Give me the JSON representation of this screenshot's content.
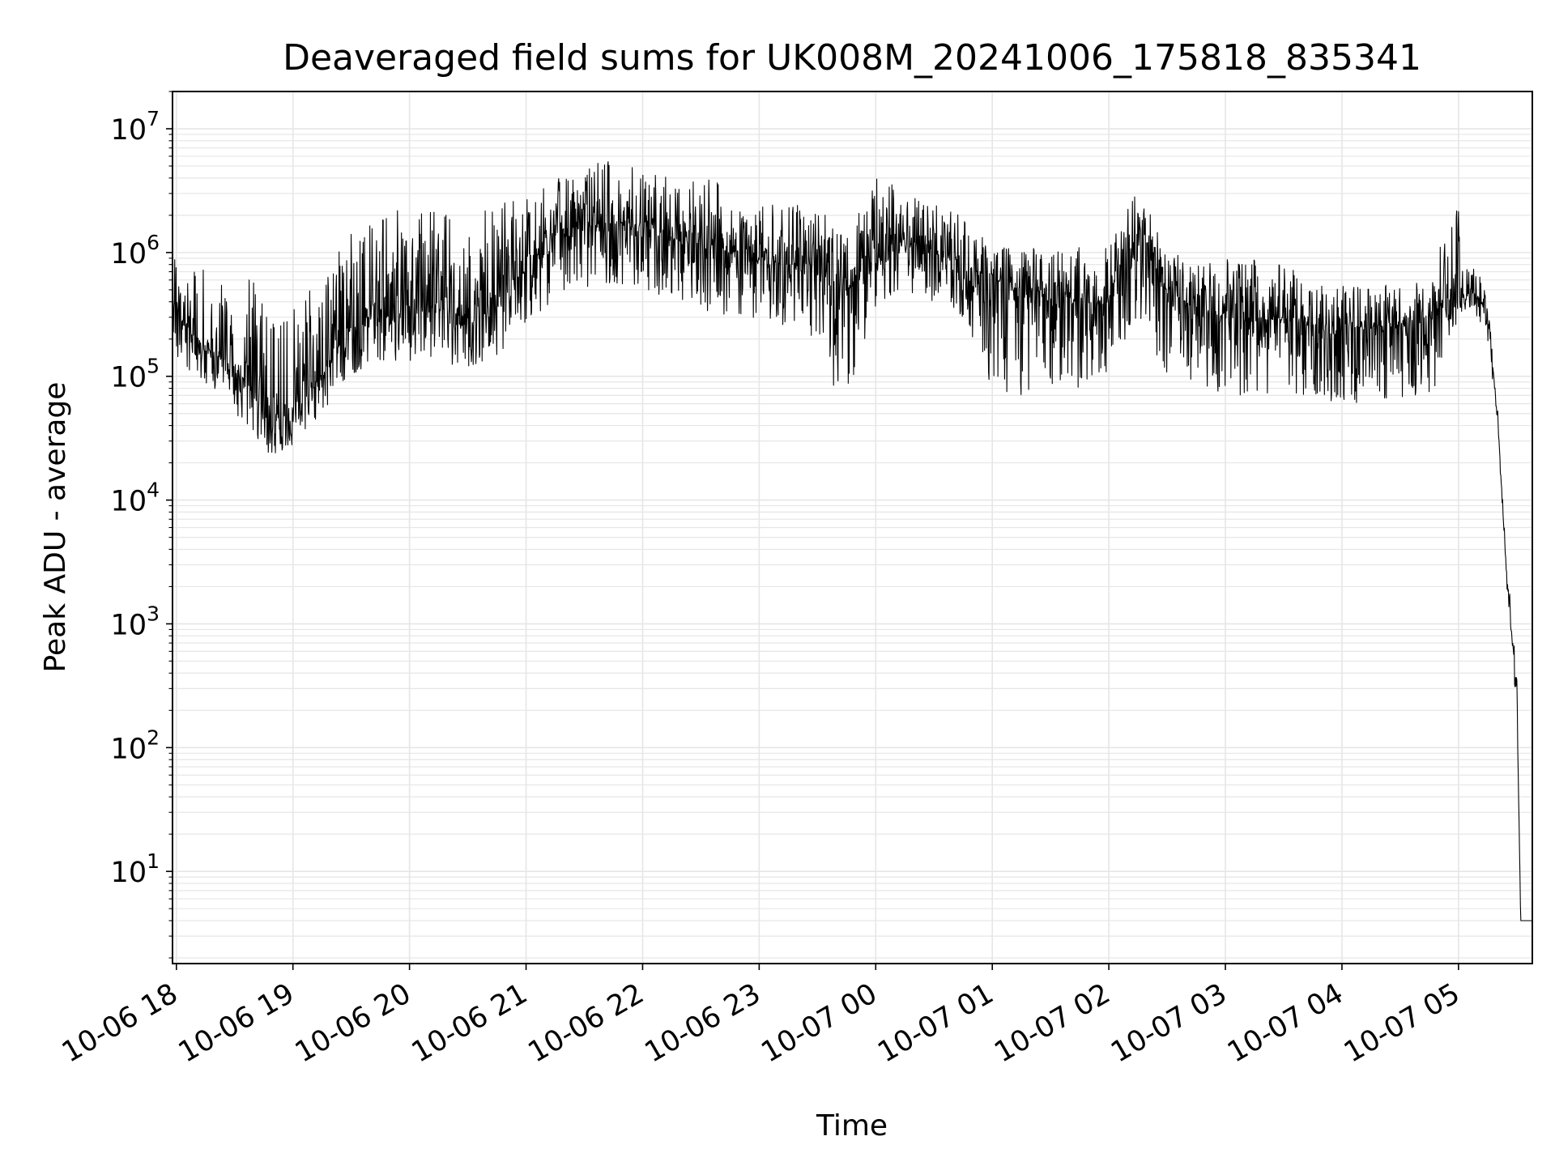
{
  "chart_data": {
    "type": "line",
    "title": "Deaveraged field sums for UK008M_20241006_175818_835341",
    "xlabel": "Time",
    "ylabel": "Peak ADU - average",
    "yscale": "log",
    "ylim": [
      1.8,
      20000000
    ],
    "xlim": [
      "2024-10-06 17:58",
      "2024-10-07 05:38"
    ],
    "grid": true,
    "line_color": "#000000",
    "x_ticks": [
      "10-06 18",
      "10-06 19",
      "10-06 20",
      "10-06 21",
      "10-06 22",
      "10-06 23",
      "10-07 00",
      "10-07 01",
      "10-07 02",
      "10-07 03",
      "10-07 04",
      "10-07 05"
    ],
    "y_ticks": [
      {
        "base": "10",
        "exp": "1",
        "value": 10
      },
      {
        "base": "10",
        "exp": "2",
        "value": 100
      },
      {
        "base": "10",
        "exp": "3",
        "value": 1000
      },
      {
        "base": "10",
        "exp": "4",
        "value": 10000
      },
      {
        "base": "10",
        "exp": "5",
        "value": 100000
      },
      {
        "base": "10",
        "exp": "6",
        "value": 1000000
      },
      {
        "base": "10",
        "exp": "7",
        "value": 10000000
      }
    ],
    "series": [
      {
        "x": [
          "2024-10-06 17:58",
          "2024-10-06 18:10",
          "2024-10-06 18:20",
          "2024-10-06 18:30",
          "2024-10-06 18:40",
          "2024-10-06 18:50",
          "2024-10-06 19:00",
          "2024-10-06 19:15",
          "2024-10-06 19:30",
          "2024-10-06 19:45",
          "2024-10-06 20:00",
          "2024-10-06 20:15",
          "2024-10-06 20:30",
          "2024-10-06 20:45",
          "2024-10-06 21:00",
          "2024-10-06 21:15",
          "2024-10-06 21:30",
          "2024-10-06 21:45",
          "2024-10-06 22:00",
          "2024-10-06 22:15",
          "2024-10-06 22:30",
          "2024-10-06 22:45",
          "2024-10-06 23:00",
          "2024-10-06 23:15",
          "2024-10-06 23:30",
          "2024-10-06 23:45",
          "2024-10-07 00:00",
          "2024-10-07 00:15",
          "2024-10-07 00:30",
          "2024-10-07 00:45",
          "2024-10-07 01:00",
          "2024-10-07 01:15",
          "2024-10-07 01:30",
          "2024-10-07 01:45",
          "2024-10-07 02:00",
          "2024-10-07 02:15",
          "2024-10-07 02:30",
          "2024-10-07 02:45",
          "2024-10-07 03:00",
          "2024-10-07 03:15",
          "2024-10-07 03:30",
          "2024-10-07 03:45",
          "2024-10-07 04:00",
          "2024-10-07 04:15",
          "2024-10-07 04:30",
          "2024-10-07 04:45",
          "2024-10-07 05:00",
          "2024-10-07 05:05",
          "2024-10-07 05:10",
          "2024-10-07 05:15",
          "2024-10-07 05:20",
          "2024-10-07 05:25",
          "2024-10-07 05:30",
          "2024-10-07 05:32",
          "2024-10-07 05:34",
          "2024-10-07 05:36",
          "2024-10-07 05:38"
        ],
        "y": [
          400000,
          200000,
          150000,
          120000,
          80000,
          40000,
          60000,
          100000,
          250000,
          300000,
          300000,
          400000,
          250000,
          400000,
          700000,
          1500000,
          1600000,
          1800000,
          1600000,
          1300000,
          1200000,
          1000000,
          900000,
          800000,
          700000,
          500000,
          900000,
          1200000,
          1100000,
          800000,
          600000,
          500000,
          500000,
          400000,
          400000,
          1500000,
          500000,
          350000,
          300000,
          280000,
          300000,
          250000,
          250000,
          250000,
          260000,
          300000,
          400000,
          500000,
          450000,
          300000,
          50000,
          2000,
          300,
          4,
          4,
          4,
          4
        ],
        "low": [
          150000,
          100000,
          70000,
          50000,
          30000,
          20000,
          25000,
          50000,
          100000,
          120000,
          100000,
          150000,
          100000,
          150000,
          250000,
          400000,
          500000,
          550000,
          500000,
          400000,
          350000,
          300000,
          280000,
          250000,
          200000,
          40000,
          350000,
          500000,
          400000,
          300000,
          80000,
          70000,
          80000,
          80000,
          80000,
          300000,
          80000,
          80000,
          70000,
          70000,
          70000,
          60000,
          60000,
          60000,
          60000,
          60000,
          300000,
          350000,
          300000,
          200000,
          40000,
          1500,
          200,
          4,
          4,
          4,
          4
        ],
        "high": [
          900000,
          700000,
          800000,
          900000,
          600000,
          300000,
          400000,
          600000,
          1500000,
          2000000,
          2500000,
          2500000,
          2000000,
          2500000,
          3000000,
          4000000,
          5000000,
          6000000,
          5000000,
          4500000,
          4000000,
          3500000,
          3000000,
          2500000,
          2500000,
          1500000,
          4000000,
          3500000,
          2500000,
          2000000,
          1100000,
          1100000,
          1100000,
          1100000,
          1100000,
          3500000,
          1000000,
          900000,
          900000,
          900000,
          800000,
          600000,
          550000,
          550000,
          550000,
          700000,
          3000000,
          1200000,
          700000,
          450000,
          60000,
          3000,
          500,
          4,
          4,
          4,
          4
        ]
      }
    ]
  }
}
